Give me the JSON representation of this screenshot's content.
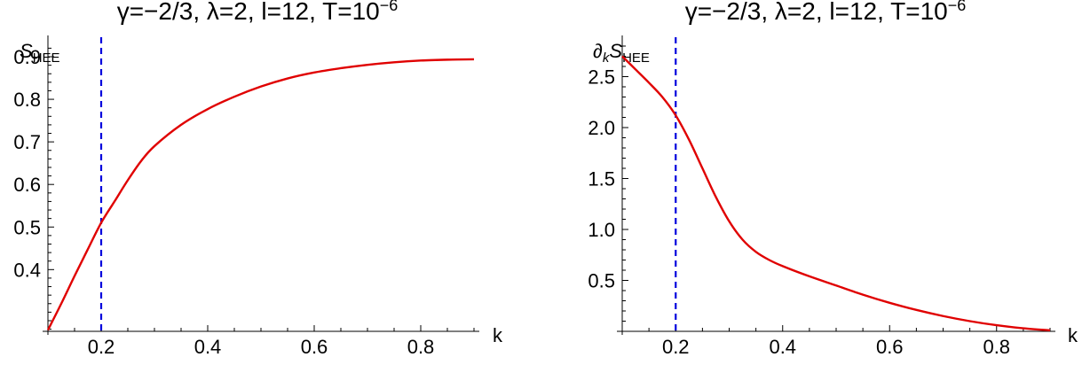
{
  "chart_data": [
    {
      "type": "line",
      "title": {
        "main": "γ=−2/3, λ=2, l=12, T=10",
        "exponent": "−6"
      },
      "ylabel": {
        "main": "S",
        "sub": "HEE"
      },
      "xlabel": "k",
      "xlim": [
        0.1,
        0.9
      ],
      "ylim": [
        0.255,
        0.925
      ],
      "x_ticks": [
        0.2,
        0.4,
        0.6,
        0.8
      ],
      "x_tick_labels": [
        "0.2",
        "0.4",
        "0.6",
        "0.8"
      ],
      "y_ticks": [
        0.4,
        0.5,
        0.6,
        0.7,
        0.8,
        0.9
      ],
      "y_tick_labels": [
        "0.4",
        "0.5",
        "0.6",
        "0.7",
        "0.8",
        "0.9"
      ],
      "vline": {
        "x": 0.2,
        "color": "#0000dd",
        "style": "dashed"
      },
      "series": [
        {
          "color": "#e00000",
          "x": [
            0.1,
            0.125,
            0.15,
            0.175,
            0.2,
            0.225,
            0.25,
            0.275,
            0.3,
            0.35,
            0.4,
            0.45,
            0.5,
            0.55,
            0.6,
            0.65,
            0.7,
            0.75,
            0.8,
            0.85,
            0.9
          ],
          "y": [
            0.258,
            0.32,
            0.385,
            0.448,
            0.51,
            0.56,
            0.61,
            0.655,
            0.69,
            0.74,
            0.777,
            0.806,
            0.83,
            0.849,
            0.863,
            0.873,
            0.881,
            0.887,
            0.891,
            0.893,
            0.894
          ]
        }
      ]
    },
    {
      "type": "line",
      "title": {
        "main": "γ=−2/3, λ=2, l=12, T=10",
        "exponent": "−6"
      },
      "ylabel": {
        "prefix": "∂",
        "prefix_sub": "k",
        "main": "S",
        "sub": "HEE"
      },
      "xlabel": "k",
      "xlim": [
        0.1,
        0.9
      ],
      "ylim": [
        0.0,
        2.8
      ],
      "x_ticks": [
        0.2,
        0.4,
        0.6,
        0.8
      ],
      "x_tick_labels": [
        "0.2",
        "0.4",
        "0.6",
        "0.8"
      ],
      "y_ticks": [
        0.5,
        1.0,
        1.5,
        2.0,
        2.5
      ],
      "y_tick_labels": [
        "0.5",
        "1.0",
        "1.5",
        "2.0",
        "2.5"
      ],
      "vline": {
        "x": 0.2,
        "color": "#0000dd",
        "style": "dashed"
      },
      "series": [
        {
          "color": "#e00000",
          "x": [
            0.1,
            0.125,
            0.15,
            0.175,
            0.2,
            0.225,
            0.25,
            0.275,
            0.3,
            0.325,
            0.35,
            0.375,
            0.4,
            0.45,
            0.5,
            0.55,
            0.6,
            0.65,
            0.7,
            0.75,
            0.8,
            0.85,
            0.9
          ],
          "y": [
            2.7,
            2.57,
            2.44,
            2.3,
            2.12,
            1.88,
            1.6,
            1.32,
            1.08,
            0.9,
            0.78,
            0.7,
            0.64,
            0.54,
            0.45,
            0.36,
            0.28,
            0.21,
            0.15,
            0.1,
            0.06,
            0.03,
            0.01
          ]
        }
      ]
    }
  ]
}
